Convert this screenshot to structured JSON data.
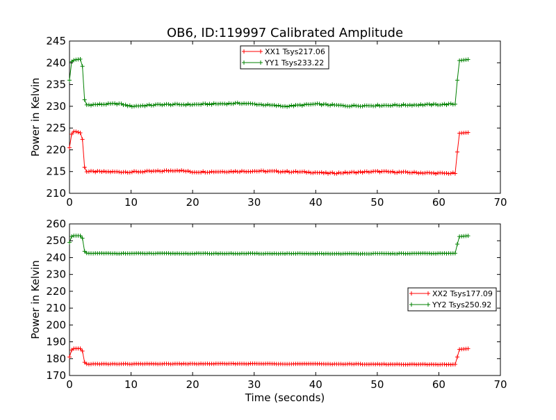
{
  "chart_data": [
    {
      "type": "line",
      "title": "OB6, ID:119997 Calibrated Amplitude",
      "xlabel": "",
      "ylabel": "Power in Kelvin",
      "xlim": [
        0,
        70
      ],
      "ylim": [
        210,
        245
      ],
      "xticks": [
        "0",
        "10",
        "20",
        "30",
        "40",
        "50",
        "60",
        "70"
      ],
      "yticks": [
        "210",
        "215",
        "220",
        "225",
        "230",
        "235",
        "240",
        "245"
      ],
      "legend_position": "top-center",
      "marker": "plus",
      "series": [
        {
          "name": "XX1 Tsys217.06",
          "color": "#ff0000",
          "keyframes": [
            [
              0,
              220.5
            ],
            [
              0.3,
              223.5
            ],
            [
              0.7,
              224.2
            ],
            [
              1.0,
              224.2
            ],
            [
              1.5,
              224.0
            ],
            [
              2.0,
              223.8
            ],
            [
              2.2,
              221.0
            ],
            [
              2.5,
              215.0
            ],
            [
              10,
              214.9
            ],
            [
              15,
              215.1
            ],
            [
              17.5,
              215.3
            ],
            [
              20,
              214.9
            ],
            [
              30,
              215.1
            ],
            [
              35,
              215.0
            ],
            [
              40,
              214.8
            ],
            [
              42,
              214.6
            ],
            [
              50,
              215.0
            ],
            [
              55,
              214.8
            ],
            [
              60,
              214.6
            ],
            [
              62.8,
              214.6
            ],
            [
              63.0,
              219.5
            ],
            [
              63.3,
              223.8
            ],
            [
              65,
              224.0
            ]
          ],
          "wiggle": 0.3
        },
        {
          "name": "YY1 Tsys233.22",
          "color": "#008000",
          "keyframes": [
            [
              0,
              236.0
            ],
            [
              0.3,
              240.2
            ],
            [
              0.7,
              240.6
            ],
            [
              1.0,
              240.7
            ],
            [
              1.5,
              240.8
            ],
            [
              2.0,
              240.9
            ],
            [
              2.2,
              237.5
            ],
            [
              2.5,
              230.3
            ],
            [
              8,
              230.6
            ],
            [
              10,
              230.0
            ],
            [
              15,
              230.4
            ],
            [
              20,
              230.4
            ],
            [
              28,
              230.7
            ],
            [
              35,
              230.0
            ],
            [
              40,
              230.5
            ],
            [
              45,
              230.1
            ],
            [
              50,
              230.2
            ],
            [
              55,
              230.3
            ],
            [
              60,
              230.4
            ],
            [
              62.8,
              230.5
            ],
            [
              63.0,
              236.0
            ],
            [
              63.3,
              240.5
            ],
            [
              65,
              240.8
            ]
          ],
          "wiggle": 0.3
        }
      ]
    },
    {
      "type": "line",
      "title": "",
      "xlabel": "Time (seconds)",
      "ylabel": "Power in Kelvin",
      "xlim": [
        0,
        70
      ],
      "ylim": [
        170,
        260
      ],
      "xticks": [
        "0",
        "10",
        "20",
        "30",
        "40",
        "50",
        "60",
        "70"
      ],
      "yticks": [
        "170",
        "180",
        "190",
        "200",
        "210",
        "220",
        "230",
        "240",
        "250",
        "260"
      ],
      "legend_position": "center-right",
      "marker": "plus",
      "series": [
        {
          "name": "XX2 Tsys177.09",
          "color": "#ff0000",
          "keyframes": [
            [
              0,
              181.0
            ],
            [
              0.3,
              185.0
            ],
            [
              0.7,
              186.0
            ],
            [
              2.0,
              186.0
            ],
            [
              2.2,
              183.0
            ],
            [
              2.5,
              176.8
            ],
            [
              30,
              177.0
            ],
            [
              45,
              176.8
            ],
            [
              62.8,
              176.5
            ],
            [
              63.0,
              181.0
            ],
            [
              63.3,
              185.5
            ],
            [
              65,
              186.0
            ]
          ],
          "wiggle": 0.3
        },
        {
          "name": "YY2 Tsys250.92",
          "color": "#008000",
          "keyframes": [
            [
              0,
              249.0
            ],
            [
              0.3,
              252.5
            ],
            [
              0.7,
              253.0
            ],
            [
              2.0,
              253.0
            ],
            [
              2.2,
              250.0
            ],
            [
              2.5,
              242.5
            ],
            [
              30,
              242.4
            ],
            [
              45,
              242.3
            ],
            [
              62.8,
              242.5
            ],
            [
              63.0,
              248.0
            ],
            [
              63.3,
              252.5
            ],
            [
              65,
              253.0
            ]
          ],
          "wiggle": 0.3
        }
      ]
    }
  ]
}
